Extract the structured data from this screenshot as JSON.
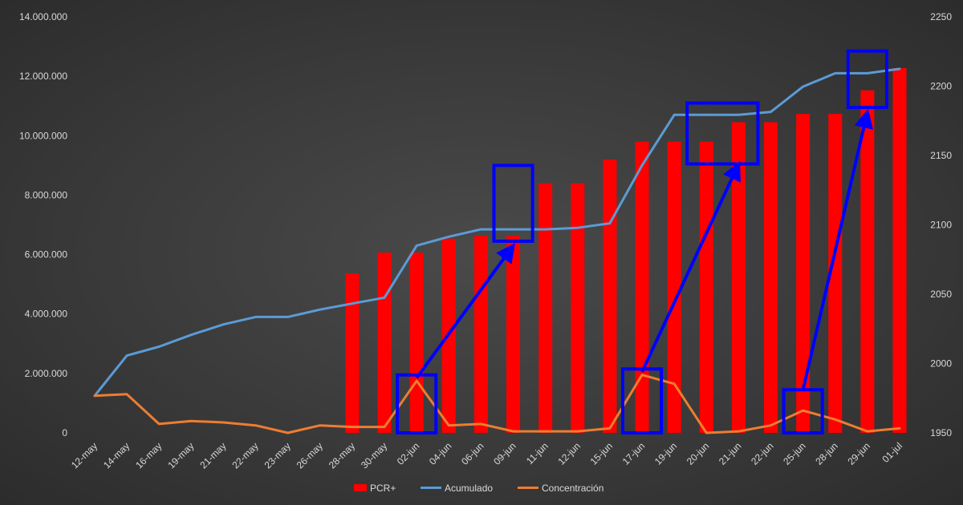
{
  "chart_data": {
    "type": "bar",
    "title": "",
    "categories": [
      "12-may",
      "14-may",
      "16-may",
      "19-may",
      "21-may",
      "22-may",
      "23-may",
      "26-may",
      "28-may",
      "30-may",
      "02-jun",
      "04-jun",
      "06-jun",
      "09-jun",
      "11-jun",
      "12-jun",
      "15-jun",
      "17-jun",
      "19-jun",
      "20-jun",
      "21-jun",
      "22-jun",
      "25-jun",
      "28-jun",
      "29-jun",
      "01-jul"
    ],
    "y_left": {
      "min": 0,
      "max": 14000000,
      "step": 2000000,
      "tick_labels": [
        "0",
        "2.000.000",
        "4.000.000",
        "6.000.000",
        "8.000.000",
        "10.000.000",
        "12.000.000",
        "14.000.000"
      ]
    },
    "y_right": {
      "min": 1950,
      "max": 2250,
      "step": 50,
      "tick_labels": [
        "1950",
        "2000",
        "2050",
        "2100",
        "2150",
        "2200",
        "2250"
      ]
    },
    "series": [
      {
        "name": "PCR+",
        "type": "bar",
        "axis": "right",
        "color": "#ff0000",
        "values": [
          null,
          null,
          null,
          null,
          null,
          null,
          null,
          null,
          2065,
          2080,
          2080,
          2090,
          2092,
          2092,
          2130,
          2130,
          2147,
          2160,
          2160,
          2160,
          2174,
          2174,
          2180,
          2180,
          2197,
          2213
        ]
      },
      {
        "name": "Acumulado",
        "type": "line",
        "axis": "left",
        "color": "#5b9bd5",
        "values": [
          1250000,
          2600000,
          2900000,
          3300000,
          3650000,
          3900000,
          3900000,
          4150000,
          4350000,
          4550000,
          6300000,
          6600000,
          6850000,
          6850000,
          6850000,
          6900000,
          7050000,
          9000000,
          10700000,
          10700000,
          10700000,
          10800000,
          11650000,
          12100000,
          12100000,
          12250000
        ]
      },
      {
        "name": "Concentración",
        "type": "line",
        "axis": "left",
        "color": "#ed7d31",
        "values": [
          1250000,
          1300000,
          300000,
          400000,
          350000,
          250000,
          0,
          250000,
          200000,
          200000,
          1750000,
          250000,
          300000,
          50000,
          50000,
          50000,
          150000,
          1950000,
          1650000,
          0,
          50000,
          250000,
          750000,
          450000,
          50000,
          150000
        ]
      }
    ],
    "annotations": {
      "box_color": "#0000ff",
      "boxes": [
        {
          "x_from": "30-may",
          "x_to": "04-jun",
          "y_from": 0,
          "y_to": 1950000
        },
        {
          "x_from": "06-jun",
          "x_to": "11-jun",
          "y_from": 6450000,
          "y_to": 9000000
        },
        {
          "x_from": "15-jun",
          "x_to": "19-jun",
          "y_from": 0,
          "y_to": 2150000
        },
        {
          "x_from": "19-jun",
          "x_to": "22-jun",
          "y_from": 9050000,
          "y_to": 11100000
        },
        {
          "x_from": "22-jun",
          "x_to": "28-jun",
          "y_from": 0,
          "y_to": 1450000
        },
        {
          "x_from": "28-jun",
          "x_to": "01-jul",
          "y_from": 10950000,
          "y_to": 12850000
        }
      ],
      "arrows": [
        {
          "from_x": "02-jun",
          "from_y": 1850000,
          "to_x": "09-jun",
          "to_y": 6300000
        },
        {
          "from_x": "17-jun",
          "from_y": 2050000,
          "to_x": "21-jun",
          "to_y": 9050000
        },
        {
          "from_x": "25-jun",
          "from_y": 1450000,
          "to_x": "29-jun",
          "to_y": 10800000
        }
      ]
    },
    "legend": {
      "position": "bottom"
    },
    "grid": false
  }
}
